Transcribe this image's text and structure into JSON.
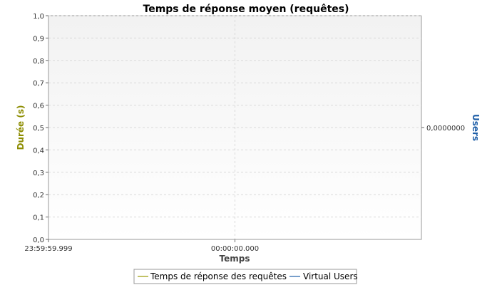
{
  "chart_data": {
    "type": "line",
    "title": "Temps de réponse moyen (requêtes)",
    "xlabel": "Temps",
    "ylabel": "Durée (s)",
    "y2label": "Users",
    "ylim": [
      0,
      1.0
    ],
    "y_ticks": [
      "0,0",
      "0,1",
      "0,2",
      "0,3",
      "0,4",
      "0,5",
      "0,6",
      "0,7",
      "0,8",
      "0,9",
      "1,0"
    ],
    "y2_ticks": [
      "0,0000000"
    ],
    "x_ticks": [
      "23:59:59.999",
      "00:00:00.000"
    ],
    "grid": true,
    "legend_position": "bottom",
    "series": [
      {
        "name": "Temps de réponse des requêtes",
        "values": [],
        "color": "#9a9a00"
      },
      {
        "name": "Virtual Users",
        "values": [],
        "color": "#1f5fa8"
      }
    ],
    "colors": {
      "ylabel": "#8c8c00",
      "y2label": "#1f5fa8"
    }
  }
}
